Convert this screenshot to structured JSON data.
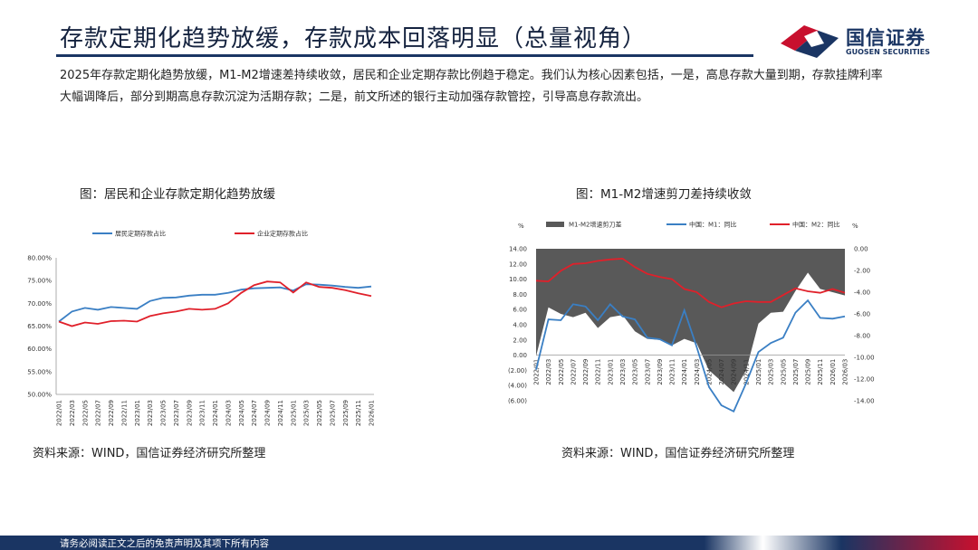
{
  "page": {
    "title": "存款定期化趋势放缓，存款成本回落明显（总量视角）",
    "body": "2025年存款定期化趋势放缓，M1-M2增速差持续收敛，居民和企业定期存款比例趋于稳定。我们认为核心因素包括，一是，高息存款大量到期，存款挂牌利率大幅调降后，部分到期高息存款沉淀为活期存款；二是，前文所述的银行主动加强存款管控，引导高息存款流出。",
    "footer": "请务必阅读正文之后的免责声明及其项下所有内容"
  },
  "logo": {
    "cn": "国信证券",
    "en": "GUOSEN SECURITIES",
    "icon": "guosen-logo-icon",
    "color_red": "#c8102e",
    "color_navy": "#1a3563"
  },
  "left_caption": "图：居民和企业存款定期化趋势放缓",
  "right_caption": "图：M1-M2增速剪刀差持续收敛",
  "left_source": "资料来源：WIND，国信证券经济研究所整理",
  "right_source": "资料来源：WIND，国信证券经济研究所整理",
  "chart_data": [
    {
      "type": "line",
      "title": "",
      "x": [
        "2022/01",
        "2022/03",
        "2022/05",
        "2022/07",
        "2022/09",
        "2022/11",
        "2023/01",
        "2023/03",
        "2023/05",
        "2023/07",
        "2023/09",
        "2023/11",
        "2024/01",
        "2024/03",
        "2024/05",
        "2024/07",
        "2024/09",
        "2024/11",
        "2025/01",
        "2025/03",
        "2025/05",
        "2025/07",
        "2025/09",
        "2025/11",
        "2026/01"
      ],
      "x_ticks": [
        "2022/01",
        "2022/03",
        "2022/05",
        "2022/07",
        "2022/09",
        "2022/11",
        "2023/01",
        "2023/03",
        "2023/05",
        "2023/07",
        "2023/09",
        "2023/11",
        "2024/01",
        "2024/03",
        "2024/05",
        "2024/07",
        "2024/09",
        "2024/11",
        "2025/01",
        "2025/03",
        "2025/05",
        "2025/07",
        "2025/09",
        "2025/11",
        "2026/01"
      ],
      "y_ticks": [
        "50.00%",
        "55.00%",
        "60.00%",
        "65.00%",
        "70.00%",
        "75.00%",
        "80.00%"
      ],
      "ylim": [
        50,
        80
      ],
      "legend_position": "top",
      "series": [
        {
          "name": "居民定期存款占比",
          "color": "#3a7fc4",
          "values": [
            66.0,
            68.2,
            69.0,
            68.6,
            69.2,
            69.0,
            68.8,
            70.5,
            71.2,
            71.3,
            71.7,
            71.9,
            71.9,
            72.3,
            73.0,
            73.3,
            73.4,
            73.5,
            72.8,
            74.2,
            74.1,
            73.9,
            73.6,
            73.4,
            73.7
          ]
        },
        {
          "name": "企业定期存款占比",
          "color": "#e0202a",
          "values": [
            66.0,
            65.0,
            65.8,
            65.5,
            66.1,
            66.2,
            66.0,
            67.2,
            67.8,
            68.2,
            68.8,
            68.6,
            68.8,
            70.0,
            72.3,
            74.0,
            74.8,
            74.6,
            72.4,
            74.6,
            73.6,
            73.4,
            72.9,
            72.2,
            71.6
          ]
        }
      ]
    },
    {
      "type": "line",
      "title": "",
      "ylabel": "%",
      "y2label": "%",
      "x": [
        "2022/01",
        "2022/03",
        "2022/05",
        "2022/07",
        "2022/09",
        "2022/11",
        "2023/01",
        "2023/03",
        "2023/05",
        "2023/07",
        "2023/09",
        "2023/11",
        "2024/01",
        "2024/03",
        "2024/05",
        "2024/07",
        "2024/09",
        "2024/11",
        "2025/01",
        "2025/03",
        "2025/05",
        "2025/07",
        "2025/09",
        "2025/11",
        "2026/01",
        "2026/03"
      ],
      "x_ticks": [
        "2022/01",
        "2022/03",
        "2022/05",
        "2022/07",
        "2022/09",
        "2022/11",
        "2023/01",
        "2023/03",
        "2023/05",
        "2023/07",
        "2023/09",
        "2023/11",
        "2024/01",
        "2024/03",
        "2024/05",
        "2024/07",
        "2024/09",
        "2024/11",
        "2025/01",
        "2025/03",
        "2025/05",
        "2025/07",
        "2025/09",
        "2025/11",
        "2026/01",
        "2026/03"
      ],
      "left_y_ticks": [
        "14.00",
        "12.00",
        "10.00",
        "8.00",
        "6.00",
        "4.00",
        "2.00",
        "0.00",
        "(2.00)",
        "(4.00)",
        "(6.00)"
      ],
      "right_y_ticks": [
        "0.00",
        "-2.00",
        "-4.00",
        "-6.00",
        "-8.00",
        "-10.00",
        "-12.00",
        "-14.00"
      ],
      "ylim": [
        -6,
        14
      ],
      "y2lim": [
        -14,
        0
      ],
      "legend_position": "top",
      "series": [
        {
          "name": "M1-M2增速剪刀差",
          "type": "area",
          "axis": "right",
          "color": "#595959",
          "values": [
            -9.9,
            -5.4,
            -6.0,
            -6.3,
            -5.9,
            -7.3,
            -6.3,
            -6.1,
            -7.6,
            -8.3,
            -8.4,
            -8.9,
            -8.3,
            -8.7,
            -11.2,
            -12.2,
            -13.2,
            -11.2,
            -6.9,
            -5.9,
            -5.8,
            -3.9,
            -2.2,
            -3.7,
            -4.0,
            -4.3
          ]
        },
        {
          "name": "中国：M1：同比",
          "axis": "left",
          "color": "#3a7fc4",
          "values": [
            -1.9,
            4.7,
            4.6,
            6.7,
            6.4,
            4.6,
            6.7,
            5.1,
            4.7,
            2.3,
            2.1,
            1.3,
            5.9,
            1.1,
            -4.2,
            -6.6,
            -7.4,
            -3.7,
            0.4,
            1.6,
            2.3,
            5.6,
            7.2,
            4.9,
            4.8,
            5.1
          ]
        },
        {
          "name": "中国：M2：同比",
          "axis": "left",
          "color": "#e0202a",
          "values": [
            9.8,
            9.7,
            11.1,
            12.0,
            12.1,
            12.4,
            12.6,
            12.7,
            11.6,
            10.7,
            10.3,
            10.0,
            8.7,
            8.3,
            7.0,
            6.3,
            6.8,
            7.1,
            7.0,
            7.0,
            7.9,
            8.8,
            8.4,
            8.2,
            8.7,
            8.2
          ]
        }
      ]
    }
  ]
}
